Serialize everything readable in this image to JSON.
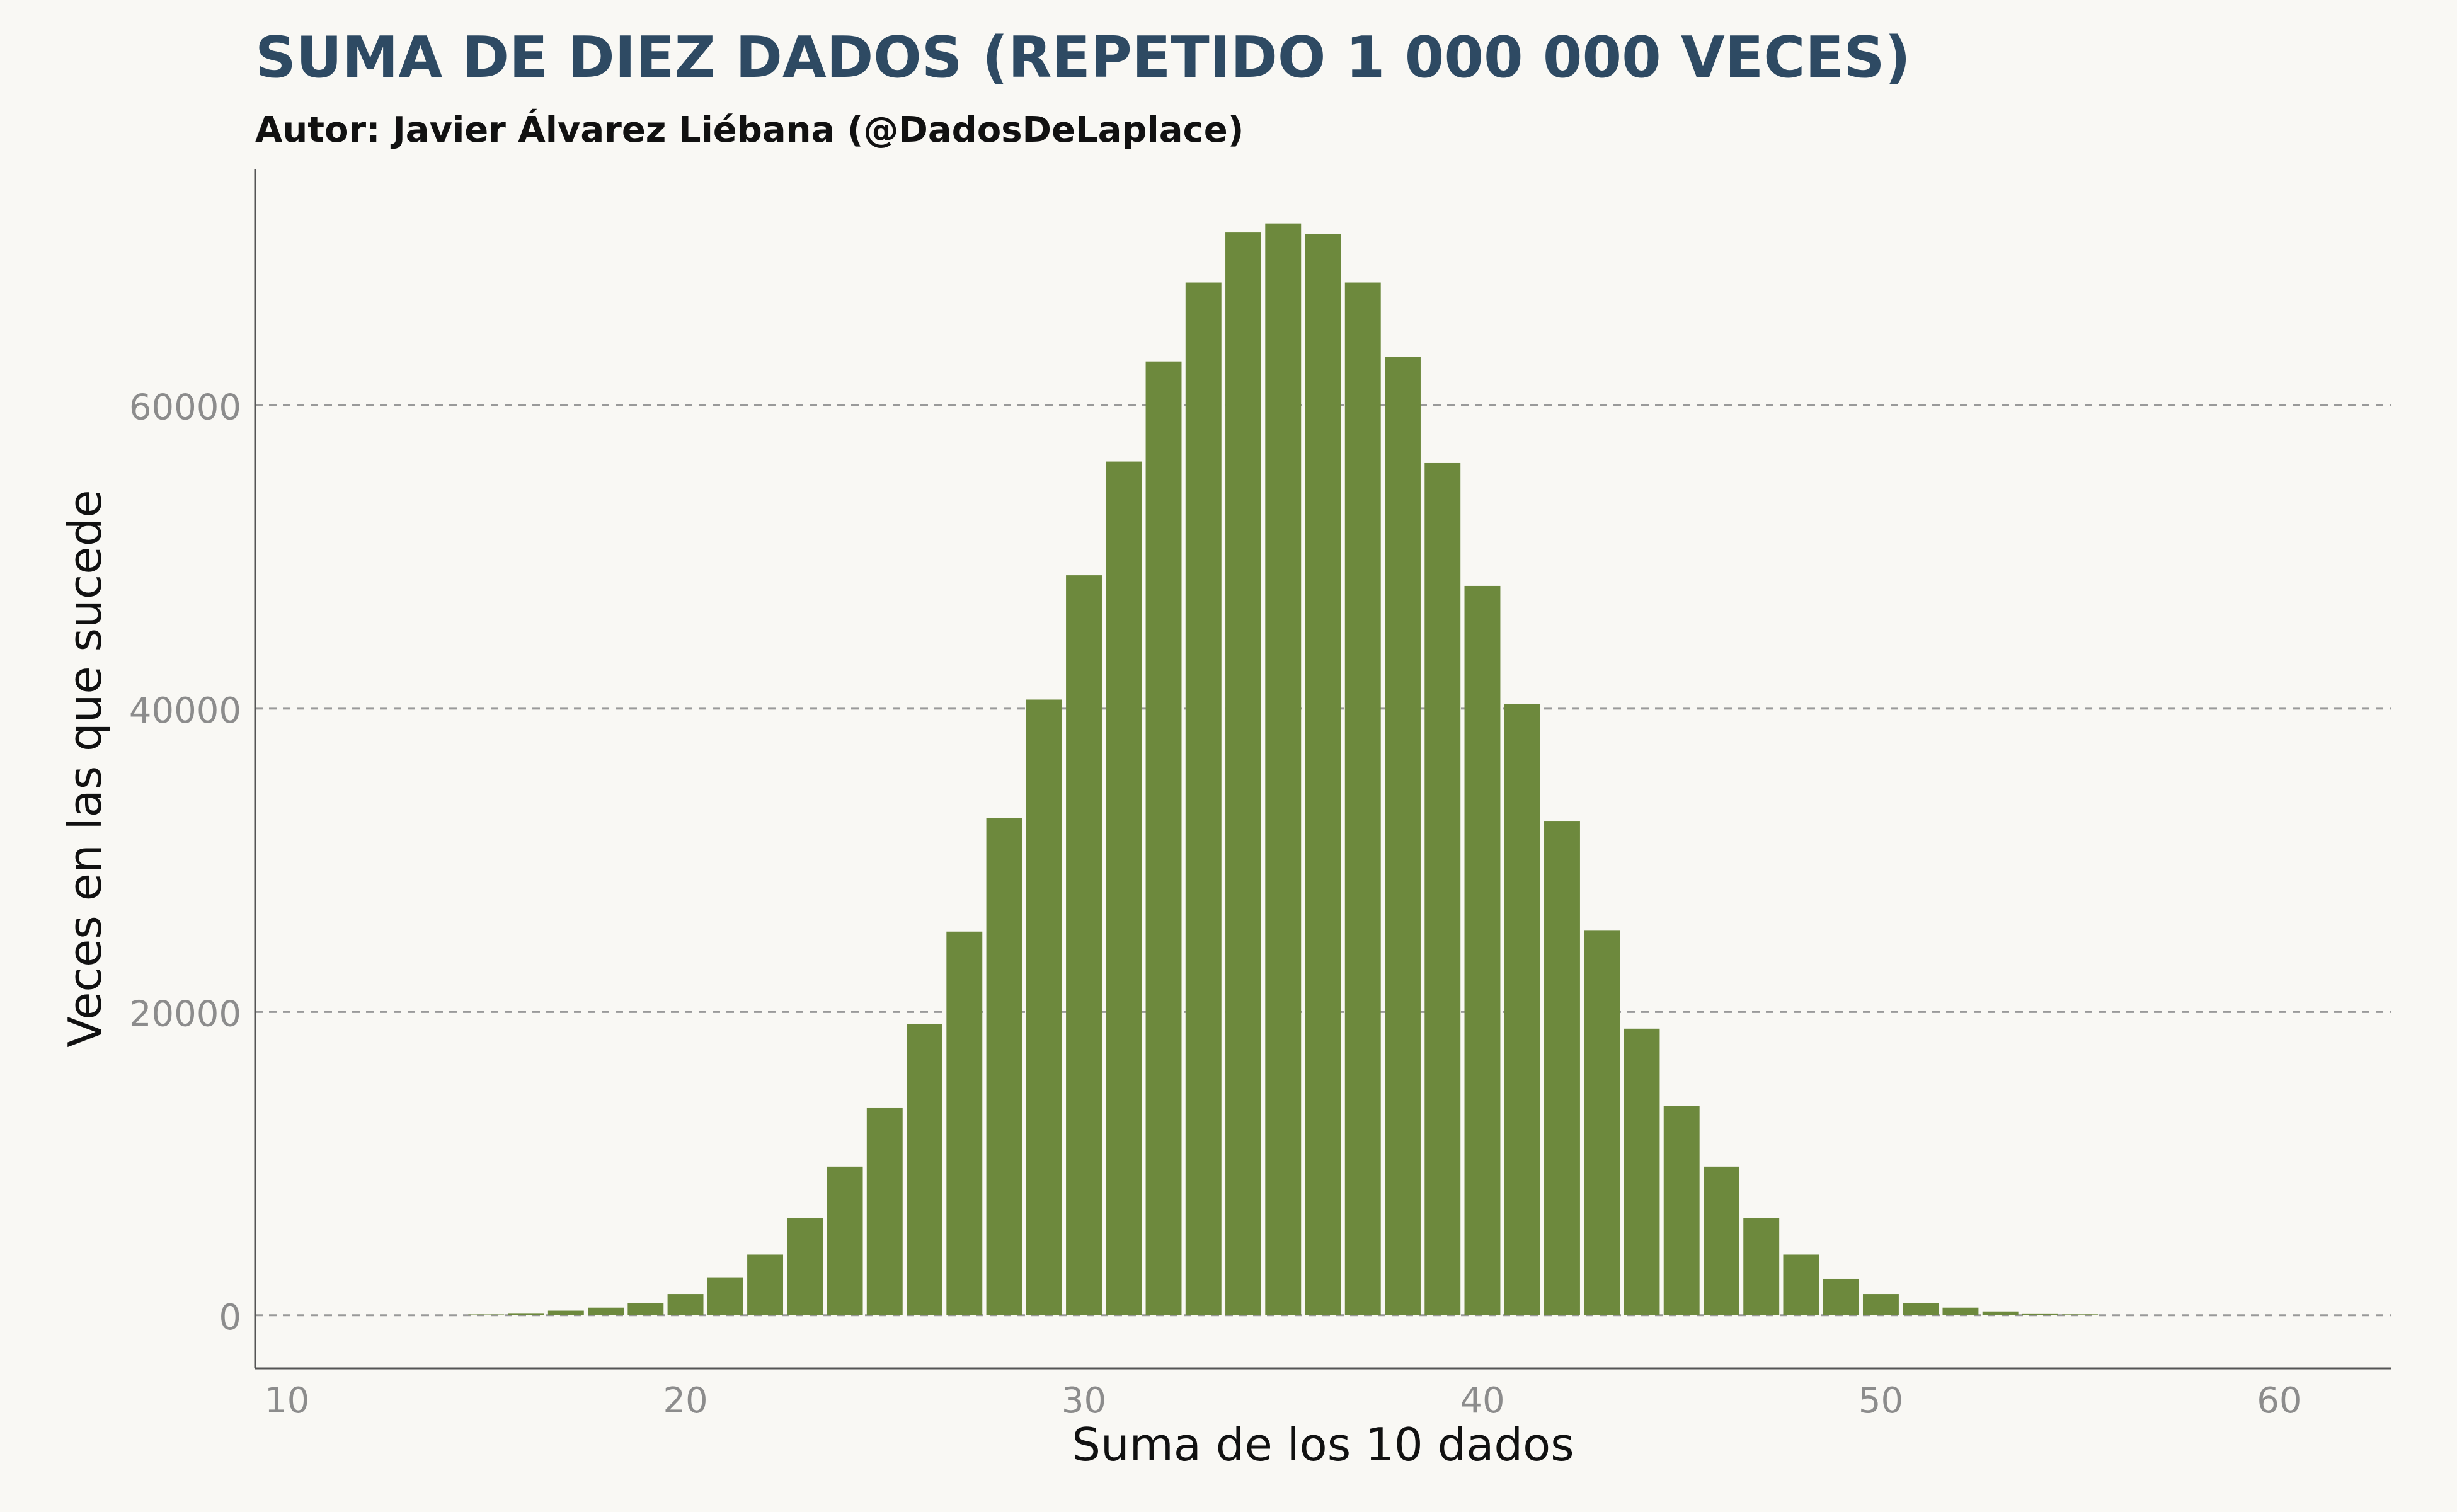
{
  "colors": {
    "background": "#f9f8f4",
    "bar": "#6d893d",
    "title": "#2e4a63",
    "subtitle": "#111111",
    "grid": "#9a9a9a",
    "axis": "#555555",
    "tick_label": "#8c8c8c"
  },
  "chart_data": {
    "type": "bar",
    "title": "SUMA DE DIEZ DADOS (REPETIDO 1 000 000 VECES)",
    "subtitle": "Autor: Javier Álvarez Liébana (@DadosDeLaplace)",
    "xlabel": "Suma de los 10 dados",
    "ylabel": "Veces en las que sucede",
    "xlim": [
      9.2,
      62.8
    ],
    "ylim": [
      -3500,
      75600
    ],
    "xticks": [
      10,
      20,
      30,
      40,
      50,
      60
    ],
    "yticks": [
      0,
      20000,
      40000,
      60000
    ],
    "grid": "horizontal dashed",
    "x": [
      10,
      11,
      12,
      13,
      14,
      15,
      16,
      17,
      18,
      19,
      20,
      21,
      22,
      23,
      24,
      25,
      26,
      27,
      28,
      29,
      30,
      31,
      32,
      33,
      34,
      35,
      36,
      37,
      38,
      39,
      40,
      41,
      42,
      43,
      44,
      45,
      46,
      47,
      48,
      49,
      50,
      51,
      52,
      53,
      54,
      55,
      56,
      57,
      58,
      59,
      60
    ],
    "values": [
      0,
      0,
      1,
      4,
      17,
      53,
      140,
      300,
      500,
      800,
      1400,
      2500,
      4000,
      6400,
      9800,
      13700,
      19200,
      25300,
      32800,
      40600,
      48800,
      56300,
      62900,
      68100,
      71400,
      72000,
      71300,
      68100,
      63200,
      56200,
      48100,
      40300,
      32600,
      25400,
      18900,
      13800,
      9800,
      6400,
      4000,
      2400,
      1400,
      800,
      500,
      250,
      120,
      60,
      20,
      7,
      2,
      0,
      0
    ]
  }
}
